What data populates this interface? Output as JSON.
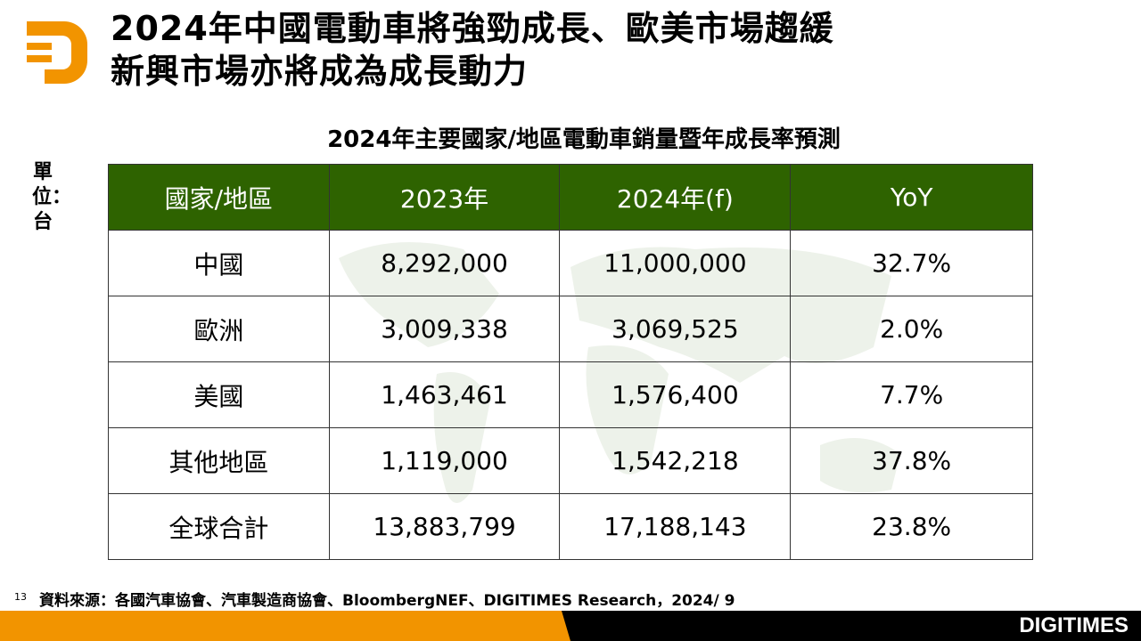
{
  "title_lines": [
    "2024年中國電動車將強勁成長、歐美市場趨緩",
    "新興市場亦將成為成長動力"
  ],
  "subtitle": "2024年主要國家/地區電動車銷量暨年成長率預測",
  "unit": "單位：台",
  "table": {
    "headers": [
      "國家/地區",
      "2023年",
      "2024年(f)",
      "YoY"
    ],
    "rows": [
      [
        "中國",
        "8,292,000",
        "11,000,000",
        "32.7%"
      ],
      [
        "歐洲",
        "3,009,338",
        "3,069,525",
        "2.0%"
      ],
      [
        "美國",
        "1,463,461",
        "1,576,400",
        "7.7%"
      ],
      [
        "其他地區",
        "1,119,000",
        "1,542,218",
        "37.8%"
      ],
      [
        "全球合計",
        "13,883,799",
        "17,188,143",
        "23.8%"
      ]
    ]
  },
  "footer": {
    "page_number": "13",
    "source": "資料來源：各國汽車協會、汽車製造商協會、BloombergNEF、DIGITIMES Research，2024/ 9",
    "brand": "DIGITIMES"
  },
  "colors": {
    "header_green": "#2e6300",
    "accent_orange": "#f29400"
  }
}
